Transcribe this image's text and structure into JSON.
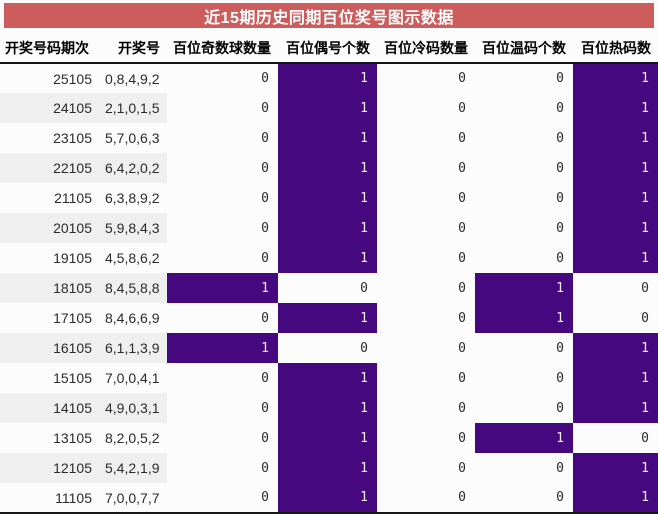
{
  "title": "近15期历史同期百位奖号图示数据",
  "colors": {
    "title_bar_bg": "#cd5c5c",
    "title_text": "#ffffff",
    "indicator_on_bg": "#45087e",
    "indicator_on_text": "#f2eef7",
    "stripe_bg": "#efefef",
    "cell_bg": "#fcfcfc",
    "rule_dark": "#151515"
  },
  "chart_data": {
    "type": "table",
    "title": "近15期历史同期百位奖号图示数据",
    "columns": [
      "开奖号码期次",
      "开奖号",
      "百位奇数球数量",
      "百位偶号个数",
      "百位冷码数量",
      "百位温码个数",
      "百位热码数"
    ],
    "rows": [
      [
        "25105",
        "0,8,4,9,2",
        0,
        1,
        0,
        0,
        1
      ],
      [
        "24105",
        "2,1,0,1,5",
        0,
        1,
        0,
        0,
        1
      ],
      [
        "23105",
        "5,7,0,6,3",
        0,
        1,
        0,
        0,
        1
      ],
      [
        "22105",
        "6,4,2,0,2",
        0,
        1,
        0,
        0,
        1
      ],
      [
        "21105",
        "6,3,8,9,2",
        0,
        1,
        0,
        0,
        1
      ],
      [
        "20105",
        "5,9,8,4,3",
        0,
        1,
        0,
        0,
        1
      ],
      [
        "19105",
        "4,5,8,6,2",
        0,
        1,
        0,
        0,
        1
      ],
      [
        "18105",
        "8,4,5,8,8",
        1,
        0,
        0,
        1,
        0
      ],
      [
        "17105",
        "8,4,6,6,9",
        0,
        1,
        0,
        1,
        0
      ],
      [
        "16105",
        "6,1,1,3,9",
        1,
        0,
        0,
        0,
        1
      ],
      [
        "15105",
        "7,0,0,4,1",
        0,
        1,
        0,
        0,
        1
      ],
      [
        "14105",
        "4,9,0,3,1",
        0,
        1,
        0,
        0,
        1
      ],
      [
        "13105",
        "8,2,0,5,2",
        0,
        1,
        0,
        1,
        0
      ],
      [
        "12105",
        "5,4,2,1,9",
        0,
        1,
        0,
        0,
        1
      ],
      [
        "11105",
        "7,0,0,7,7",
        0,
        1,
        0,
        0,
        1
      ]
    ],
    "legend": "cell value 1 = purple highlight, 0 = white",
    "grid": false
  }
}
